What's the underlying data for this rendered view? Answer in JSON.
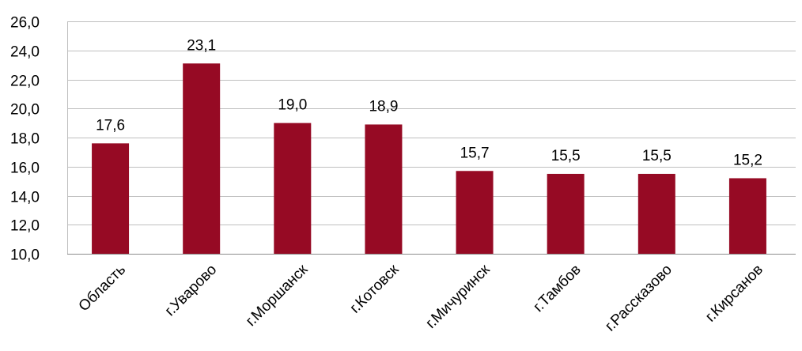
{
  "chart_data": {
    "type": "bar",
    "categories": [
      "Область",
      "г.Уварово",
      "г.Моршанск",
      "г.Котовск",
      "г.Мичуринск",
      "г.Тамбов",
      "г.Рассказово",
      "г.Кирсанов"
    ],
    "values": [
      17.6,
      23.1,
      19.0,
      18.9,
      15.7,
      15.5,
      15.5,
      15.2
    ],
    "value_labels": [
      "17,6",
      "23,1",
      "19,0",
      "18,9",
      "15,7",
      "15,5",
      "15,5",
      "15,2"
    ],
    "y_ticks": [
      10,
      12,
      14,
      16,
      18,
      20,
      22,
      24,
      26
    ],
    "y_tick_labels": [
      "10,0",
      "12,0",
      "14,0",
      "16,0",
      "18,0",
      "20,0",
      "22,0",
      "24,0",
      "26,0"
    ],
    "ylim": [
      10,
      26
    ],
    "grid": true,
    "legend": "none",
    "title": "",
    "xlabel": "",
    "ylabel": "",
    "colors": {
      "bar": "#960a24",
      "grid": "#bfbfbf",
      "axis": "#8c8c8c"
    }
  }
}
